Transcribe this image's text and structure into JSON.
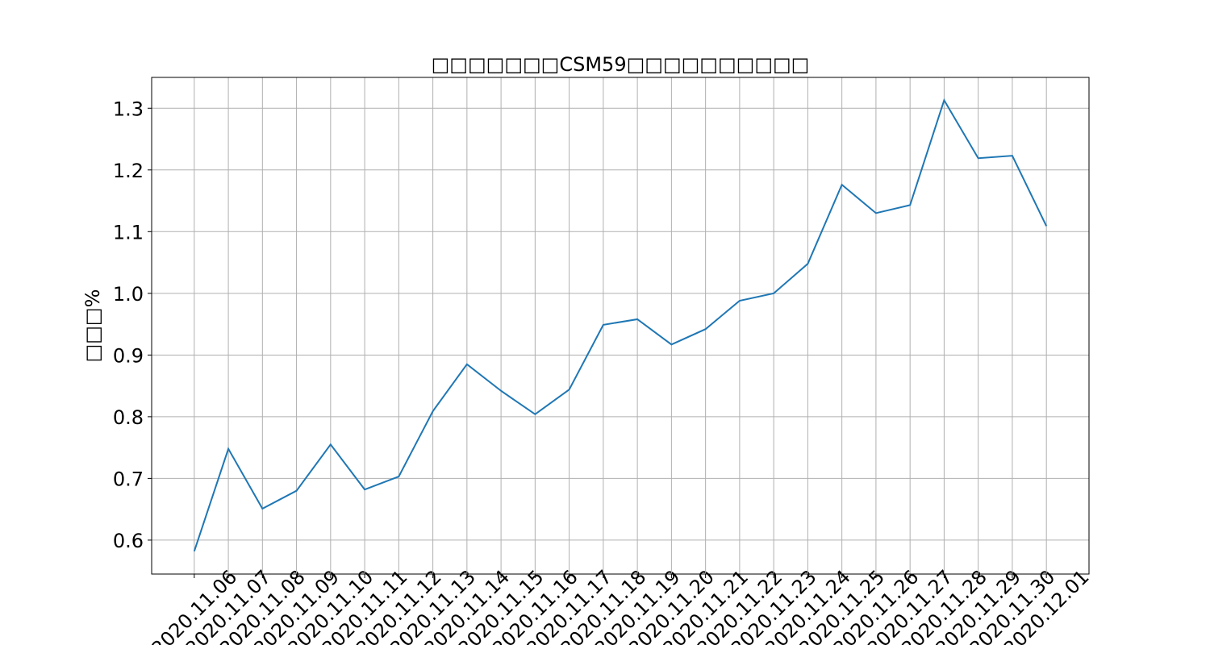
{
  "chart_data": {
    "type": "line",
    "title": "□□□□□□□CSM59□□□□□□□□□□",
    "y_label": "□□□%",
    "categories": [
      "2020.11.06",
      "2020.11.07",
      "2020.11.08",
      "2020.11.09",
      "2020.11.10",
      "2020.11.11",
      "2020.11.12",
      "2020.11.13",
      "2020.11.14",
      "2020.11.15",
      "2020.11.16",
      "2020.11.17",
      "2020.11.18",
      "2020.11.19",
      "2020.11.20",
      "2020.11.21",
      "2020.11.22",
      "2020.11.23",
      "2020.11.24",
      "2020.11.25",
      "2020.11.26",
      "2020.11.27",
      "2020.11.28",
      "2020.11.29",
      "2020.11.30",
      "2020.12.01"
    ],
    "values": [
      0.582,
      0.748,
      0.651,
      0.68,
      0.755,
      0.682,
      0.703,
      0.809,
      0.885,
      0.842,
      0.804,
      0.844,
      0.949,
      0.958,
      0.917,
      0.942,
      0.988,
      1.0,
      1.048,
      1.176,
      1.13,
      1.143,
      1.313,
      1.219,
      1.223,
      1.109
    ],
    "color": "#1f77b4",
    "ylim": [
      0.545,
      1.35
    ],
    "yticks": [
      0.6,
      0.7,
      0.8,
      0.9,
      {
        "value": 1.0,
        "label": "1.0"
      },
      1.1,
      1.2,
      1.3
    ],
    "grid": true
  }
}
